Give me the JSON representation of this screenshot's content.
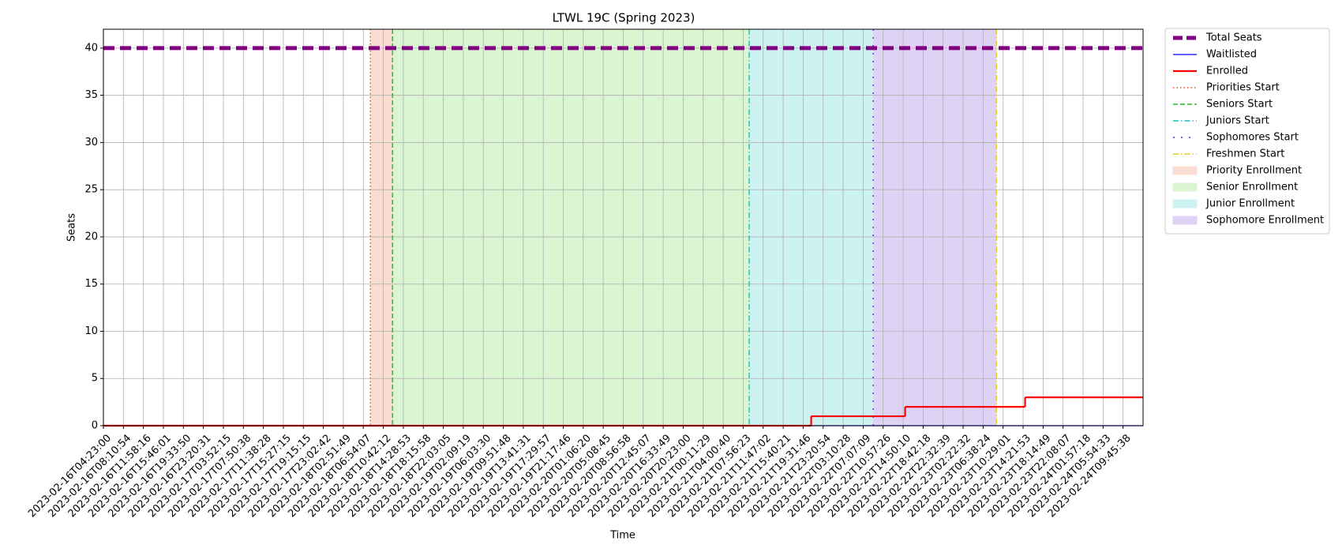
{
  "chart_data": {
    "type": "line",
    "title": "LTWL 19C (Spring 2023)",
    "xlabel": "Time",
    "ylabel": "Seats",
    "xlim": [
      0,
      52
    ],
    "ylim": [
      0,
      42
    ],
    "grid": true,
    "legend": "outside upper right",
    "yticks": [
      0,
      5,
      10,
      15,
      20,
      25,
      30,
      35,
      40
    ],
    "xticks": [
      {
        "value": 0,
        "label": "2023-02-16T04:23:00"
      },
      {
        "value": 1,
        "label": "2023-02-16T08:10:54"
      },
      {
        "value": 2,
        "label": "2023-02-16T11:58:16"
      },
      {
        "value": 3,
        "label": "2023-02-16T15:46:01"
      },
      {
        "value": 4,
        "label": "2023-02-16T19:33:50"
      },
      {
        "value": 5,
        "label": "2023-02-16T23:20:31"
      },
      {
        "value": 6,
        "label": "2023-02-17T03:52:15"
      },
      {
        "value": 7,
        "label": "2023-02-17T07:50:38"
      },
      {
        "value": 8,
        "label": "2023-02-17T11:38:28"
      },
      {
        "value": 9,
        "label": "2023-02-17T15:27:15"
      },
      {
        "value": 10,
        "label": "2023-02-17T19:15:15"
      },
      {
        "value": 11,
        "label": "2023-02-17T23:02:42"
      },
      {
        "value": 12,
        "label": "2023-02-18T02:51:49"
      },
      {
        "value": 13,
        "label": "2023-02-18T06:54:07"
      },
      {
        "value": 14,
        "label": "2023-02-18T10:42:12"
      },
      {
        "value": 15,
        "label": "2023-02-18T14:28:53"
      },
      {
        "value": 16,
        "label": "2023-02-18T18:15:58"
      },
      {
        "value": 17,
        "label": "2023-02-18T22:03:05"
      },
      {
        "value": 18,
        "label": "2023-02-19T02:09:19"
      },
      {
        "value": 19,
        "label": "2023-02-19T06:03:30"
      },
      {
        "value": 20,
        "label": "2023-02-19T09:51:48"
      },
      {
        "value": 21,
        "label": "2023-02-19T13:41:31"
      },
      {
        "value": 22,
        "label": "2023-02-19T17:29:57"
      },
      {
        "value": 23,
        "label": "2023-02-19T21:17:46"
      },
      {
        "value": 24,
        "label": "2023-02-20T01:06:20"
      },
      {
        "value": 25,
        "label": "2023-02-20T05:08:45"
      },
      {
        "value": 26,
        "label": "2023-02-20T08:56:58"
      },
      {
        "value": 27,
        "label": "2023-02-20T12:45:07"
      },
      {
        "value": 28,
        "label": "2023-02-20T16:33:49"
      },
      {
        "value": 29,
        "label": "2023-02-20T20:23:00"
      },
      {
        "value": 30,
        "label": "2023-02-21T00:11:29"
      },
      {
        "value": 31,
        "label": "2023-02-21T04:00:40"
      },
      {
        "value": 32,
        "label": "2023-02-21T07:56:23"
      },
      {
        "value": 33,
        "label": "2023-02-21T11:47:02"
      },
      {
        "value": 34,
        "label": "2023-02-21T15:40:21"
      },
      {
        "value": 35,
        "label": "2023-02-21T19:31:46"
      },
      {
        "value": 36,
        "label": "2023-02-21T23:20:54"
      },
      {
        "value": 37,
        "label": "2023-02-22T03:10:28"
      },
      {
        "value": 38,
        "label": "2023-02-22T07:07:09"
      },
      {
        "value": 39,
        "label": "2023-02-22T10:57:26"
      },
      {
        "value": 40,
        "label": "2023-02-22T14:50:10"
      },
      {
        "value": 41,
        "label": "2023-02-22T18:42:18"
      },
      {
        "value": 42,
        "label": "2023-02-22T22:32:39"
      },
      {
        "value": 43,
        "label": "2023-02-23T02:22:32"
      },
      {
        "value": 44,
        "label": "2023-02-23T06:38:24"
      },
      {
        "value": 45,
        "label": "2023-02-23T10:29:01"
      },
      {
        "value": 46,
        "label": "2023-02-23T14:21:53"
      },
      {
        "value": 47,
        "label": "2023-02-23T18:14:49"
      },
      {
        "value": 48,
        "label": "2023-02-23T22:08:07"
      },
      {
        "value": 49,
        "label": "2023-02-24T01:57:18"
      },
      {
        "value": 50,
        "label": "2023-02-24T05:54:33"
      },
      {
        "value": 51,
        "label": "2023-02-24T09:45:38"
      }
    ],
    "series": [
      {
        "name": "Total Seats",
        "color": "#800080",
        "style": "dashed",
        "width": 5,
        "x": [
          0,
          52
        ],
        "values": [
          40,
          40
        ]
      },
      {
        "name": "Waitlisted",
        "color": "#0000ff",
        "style": "solid",
        "width": 1.2,
        "x": [
          0,
          52
        ],
        "values": [
          0,
          0
        ]
      },
      {
        "name": "Enrolled",
        "color": "#ff0000",
        "style": "step",
        "width": 2.2,
        "x": [
          0,
          35.4,
          40.1,
          46.1,
          52
        ],
        "values": [
          0,
          1,
          2,
          3,
          3
        ]
      }
    ],
    "markers": [
      {
        "name": "Priorities Start",
        "x": 13.35,
        "color": "#e8462a",
        "style": "dotted"
      },
      {
        "name": "Seniors Start",
        "x": 14.46,
        "color": "#22bb22",
        "style": "dashed"
      },
      {
        "name": "Juniors Start",
        "x": 32.3,
        "color": "#17bfbf",
        "style": "dashdot"
      },
      {
        "name": "Sophomores Start",
        "x": 38.5,
        "color": "#5522dd",
        "style": "loose"
      },
      {
        "name": "Freshmen Start",
        "x": 44.67,
        "color": "#e0cc22",
        "style": "dashdot"
      }
    ],
    "spans": [
      {
        "name": "Priority Enrollment",
        "x": [
          13.35,
          14.46
        ],
        "color": "#f8ddd0"
      },
      {
        "name": "Senior Enrollment",
        "x": [
          14.46,
          32.3
        ],
        "color": "#d9f5d1"
      },
      {
        "name": "Junior Enrollment",
        "x": [
          32.3,
          38.5
        ],
        "color": "#cdf2f2"
      },
      {
        "name": "Sophomore Enrollment",
        "x": [
          38.5,
          44.67
        ],
        "color": "#dfd3f5"
      }
    ]
  }
}
